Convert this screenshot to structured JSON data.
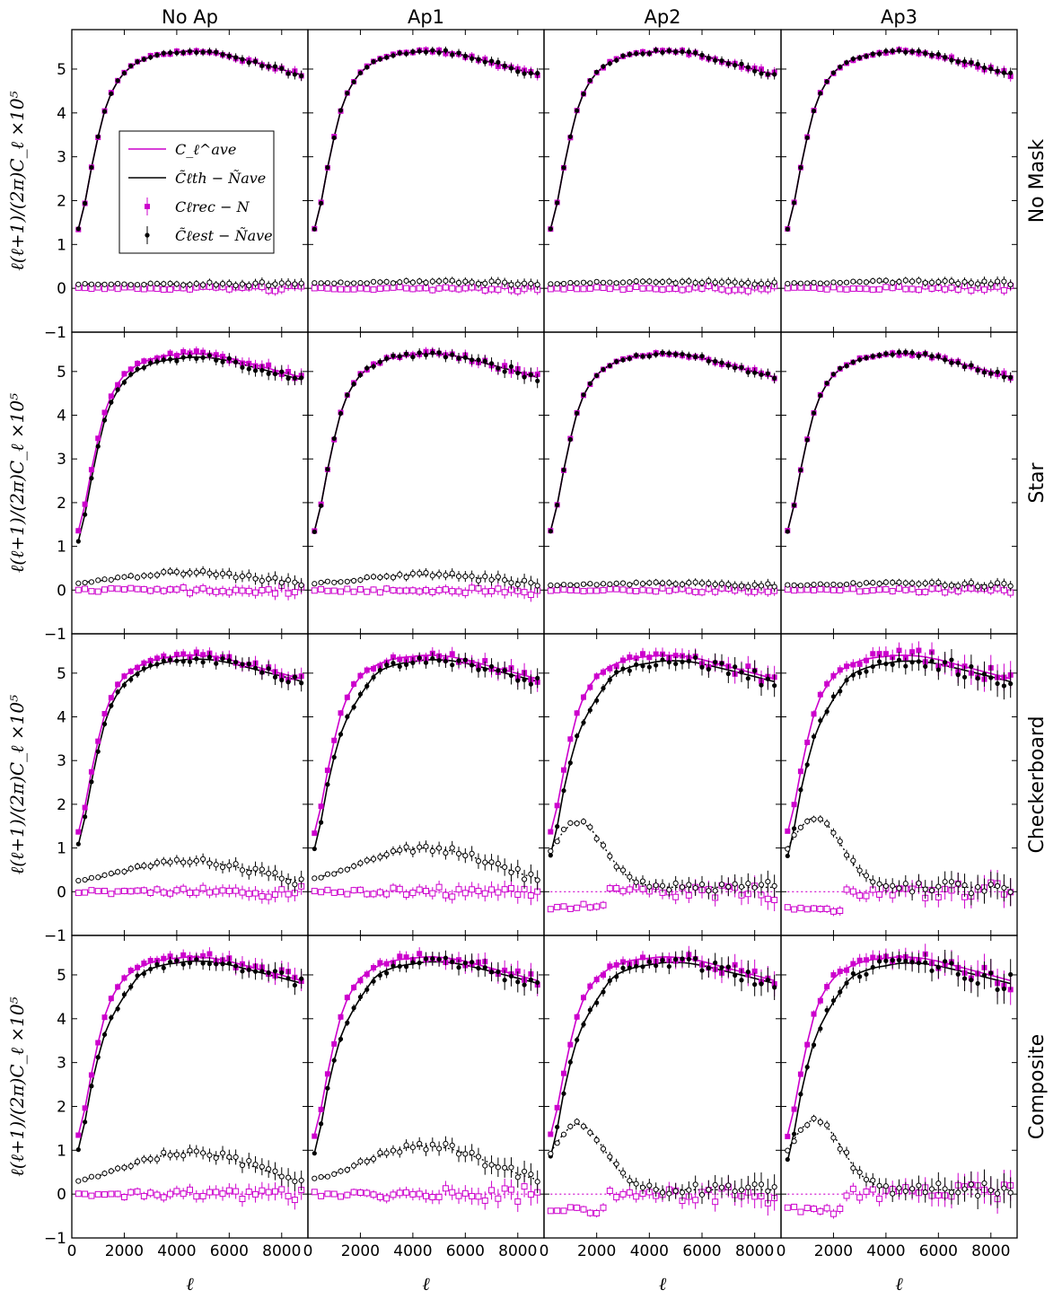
{
  "chart_data": {
    "type": "scatter",
    "title": "",
    "columns": [
      "No Ap",
      "Ap1",
      "Ap2",
      "Ap3"
    ],
    "rows": [
      "No Mask",
      "Star",
      "Checkerboard",
      "Composite"
    ],
    "xlabel": "ℓ",
    "ylabel": "ℓ(ℓ+1)/(2π)C_ℓ ×10⁵",
    "xlim": [
      0,
      9000
    ],
    "ylim": [
      -1,
      5.9
    ],
    "x_ticks": [
      0,
      2000,
      4000,
      6000,
      8000
    ],
    "y_ticks": [
      -1,
      0,
      1,
      2,
      3,
      4,
      5
    ],
    "legend": {
      "position": "upper-left of first panel",
      "entries": [
        {
          "label": "C_ℓ^ave − (magenta line)",
          "text": "C_ℓ^ave",
          "color": "#cc00cc",
          "style": "line"
        },
        {
          "label": "C̃_ℓ^th − Ñ^ave",
          "text": "C̃ℓth − Ñave",
          "color": "#000000",
          "style": "line"
        },
        {
          "label": "C_ℓ^rec − N",
          "text": "Cℓrec − N",
          "color": "#cc00cc",
          "style": "square-errorbar"
        },
        {
          "label": "C̃_ℓ^est − Ñ^ave",
          "text": "C̃ℓest − Ñave",
          "color": "#000000",
          "style": "circle-errorbar"
        }
      ]
    },
    "x": [
      250,
      500,
      750,
      1000,
      1250,
      1500,
      1750,
      2000,
      2250,
      2500,
      2750,
      3000,
      3250,
      3500,
      3750,
      4000,
      4250,
      4500,
      4750,
      5000,
      5250,
      5500,
      5750,
      6000,
      6250,
      6500,
      6750,
      7000,
      7250,
      7500,
      7750,
      8000,
      8250,
      8500,
      8750
    ],
    "panel_shapes": {
      "No Ap|No Mask": {
        "dip_start": 0,
        "low_leak": 0,
        "ripple": 0.05,
        "residual_hump": 0.0
      },
      "No Ap|Star": {
        "offset": -0.2,
        "ripple": 0.08,
        "residual_hump": 0.3
      },
      "No Ap|Checkerboard": {
        "offset": -0.25,
        "ripple": 0.1,
        "residual_hump": 0.6
      },
      "No Ap|Composite": {
        "offset": -0.3,
        "ripple": 0.12,
        "residual_hump": 0.85
      },
      "Ap1|Star": {
        "offset": 0,
        "ripple": 0.08,
        "residual_hump": 0.25
      },
      "Ap1|Checkerboard": {
        "offset": -0.35,
        "ripple": 0.12,
        "residual_hump": 0.9
      },
      "Ap2|Checkerboard": {
        "offset": -0.5,
        "ripple": 0.14,
        "residual_hump": 1.5
      },
      "Ap3|Checkerboard": {
        "offset": -0.55,
        "ripple": 0.18,
        "residual_hump": 1.6
      },
      "Ap1|Composite": {
        "offset": -0.4,
        "ripple": 0.14,
        "residual_hump": 1.0
      },
      "Ap2|Composite": {
        "offset": -0.5,
        "ripple": 0.16,
        "residual_hump": 1.5
      },
      "Ap3|Composite": {
        "offset": -0.6,
        "ripple": 0.2,
        "residual_hump": 1.6
      }
    },
    "base_spectrum": [
      1.35,
      1.95,
      2.75,
      3.45,
      4.05,
      4.45,
      4.72,
      4.92,
      5.05,
      5.15,
      5.22,
      5.28,
      5.32,
      5.35,
      5.37,
      5.38,
      5.4,
      5.41,
      5.41,
      5.4,
      5.39,
      5.37,
      5.34,
      5.31,
      5.27,
      5.23,
      5.19,
      5.15,
      5.11,
      5.07,
      5.03,
      4.99,
      4.95,
      4.91,
      4.87
    ],
    "series_colors": {
      "ave": "#cc00cc",
      "theory": "#000000",
      "rec": "#cc00cc",
      "est": "#000000"
    }
  }
}
